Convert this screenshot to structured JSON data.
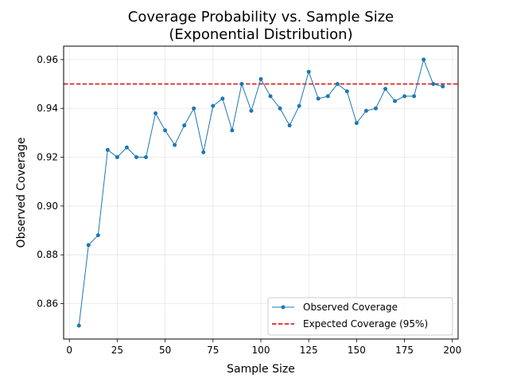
{
  "chart_data": {
    "type": "line",
    "title": "Coverage Probability vs. Sample Size",
    "subtitle": "(Exponential Distribution)",
    "xlabel": "Sample Size",
    "ylabel": "Observed Coverage",
    "xlim": [
      -3,
      203
    ],
    "ylim": [
      0.8455,
      0.9655
    ],
    "xticks": [
      0,
      25,
      50,
      75,
      100,
      125,
      150,
      175,
      200
    ],
    "xtick_labels": [
      "0",
      "25",
      "50",
      "75",
      "100",
      "125",
      "150",
      "175",
      "200"
    ],
    "yticks": [
      0.86,
      0.88,
      0.9,
      0.92,
      0.94,
      0.96
    ],
    "ytick_labels": [
      "0.86",
      "0.88",
      "0.90",
      "0.92",
      "0.94",
      "0.96"
    ],
    "grid": true,
    "legend_position": "lower-right",
    "series": [
      {
        "name": "Observed Coverage",
        "color": "#1f77b4",
        "style": "solid-with-markers",
        "x": [
          5,
          10,
          15,
          20,
          25,
          30,
          35,
          40,
          45,
          50,
          55,
          60,
          65,
          70,
          75,
          80,
          85,
          90,
          95,
          100,
          105,
          110,
          115,
          120,
          125,
          130,
          135,
          140,
          145,
          150,
          155,
          160,
          165,
          170,
          175,
          180,
          185,
          190,
          195
        ],
        "y": [
          0.851,
          0.884,
          0.888,
          0.923,
          0.92,
          0.924,
          0.92,
          0.92,
          0.938,
          0.931,
          0.925,
          0.933,
          0.94,
          0.922,
          0.941,
          0.944,
          0.931,
          0.95,
          0.939,
          0.952,
          0.945,
          0.94,
          0.933,
          0.941,
          0.955,
          0.944,
          0.945,
          0.95,
          0.947,
          0.934,
          0.939,
          0.94,
          0.948,
          0.943,
          0.945,
          0.945,
          0.96,
          0.95,
          0.949
        ]
      }
    ],
    "reference_lines": [
      {
        "name": "Expected Coverage (95%)",
        "y": 0.95,
        "color": "#d62728",
        "style": "dashed"
      }
    ]
  }
}
